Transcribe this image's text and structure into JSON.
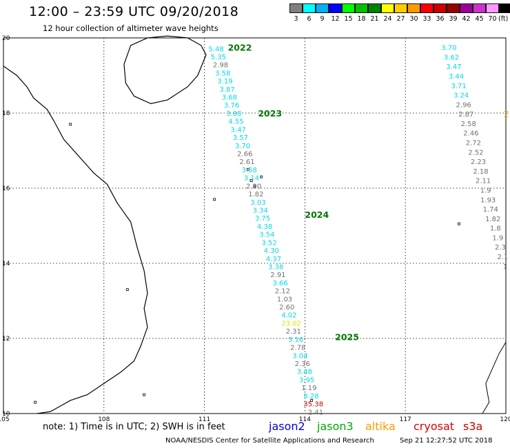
{
  "title": "12:00 – 23:59 UTC 09/20/2018",
  "subtitle": "12 hour collection of altimeter wave heights",
  "scale": {
    "unit": "(ft)",
    "bins": [
      {
        "label": "3",
        "color": "#808080"
      },
      {
        "label": "6",
        "color": "#00ffff"
      },
      {
        "label": "9",
        "color": "#00b0f0"
      },
      {
        "label": "12",
        "color": "#0000ff"
      },
      {
        "label": "15",
        "color": "#00ff00"
      },
      {
        "label": "18",
        "color": "#00c000"
      },
      {
        "label": "21",
        "color": "#008000"
      },
      {
        "label": "24",
        "color": "#ffff00"
      },
      {
        "label": "27",
        "color": "#ffcc00"
      },
      {
        "label": "30",
        "color": "#ff9900"
      },
      {
        "label": "33",
        "color": "#ff0000"
      },
      {
        "label": "36",
        "color": "#cc0000"
      },
      {
        "label": "39",
        "color": "#990000"
      },
      {
        "label": "42",
        "color": "#990099"
      },
      {
        "label": "45",
        "color": "#cc33cc"
      },
      {
        "label": "70",
        "color": "#ff99ff"
      },
      {
        "label": "",
        "color": "#000000"
      }
    ]
  },
  "map": {
    "lon_labels": [
      "105",
      "108",
      "111",
      "114",
      "117",
      "120"
    ],
    "lat_labels": [
      "10",
      "12",
      "14",
      "16",
      "18",
      "20"
    ],
    "lon_range": [
      105,
      120
    ],
    "lat_range": [
      10,
      20
    ]
  },
  "passes": [
    {
      "id": "2022",
      "color": "#007700",
      "lon": 111.7,
      "lat": 19.75
    },
    {
      "id": "2023",
      "color": "#007700",
      "lon": 112.6,
      "lat": 18.0
    },
    {
      "id": "2024",
      "color": "#007700",
      "lon": 114.0,
      "lat": 15.3
    },
    {
      "id": "2025",
      "color": "#007700",
      "lon": 114.9,
      "lat": 12.05
    }
  ],
  "observations": {
    "track_a": [
      {
        "v": "5.48",
        "c": "#00d8e8"
      },
      {
        "v": "5.35",
        "c": "#00d8e8"
      },
      {
        "v": "2.98",
        "c": "#707070"
      },
      {
        "v": "3.58",
        "c": "#00d8e8"
      },
      {
        "v": "3.19",
        "c": "#00d8e8"
      },
      {
        "v": "3.87",
        "c": "#00d8e8"
      },
      {
        "v": "3.68",
        "c": "#00d8e8"
      },
      {
        "v": "3.76",
        "c": "#00d8e8"
      },
      {
        "v": "3.88",
        "c": "#00d8e8"
      },
      {
        "v": "4.55",
        "c": "#00d8e8"
      },
      {
        "v": "3.47",
        "c": "#00d8e8"
      },
      {
        "v": "3.57",
        "c": "#00d8e8"
      },
      {
        "v": "3.70",
        "c": "#00d8e8"
      },
      {
        "v": "2.66",
        "c": "#707070"
      },
      {
        "v": "2.61",
        "c": "#707070"
      },
      {
        "v": "3.58",
        "c": "#00d8e8"
      },
      {
        "v": "3.14",
        "c": "#00d8e8"
      },
      {
        "v": "2.90",
        "c": "#707070"
      },
      {
        "v": "1.82",
        "c": "#707070"
      },
      {
        "v": "3.03",
        "c": "#00d8e8"
      },
      {
        "v": "3.34",
        "c": "#00d8e8"
      },
      {
        "v": "3.75",
        "c": "#00d8e8"
      },
      {
        "v": "4.38",
        "c": "#00d8e8"
      },
      {
        "v": "3.54",
        "c": "#00d8e8"
      },
      {
        "v": "3.52",
        "c": "#00d8e8"
      },
      {
        "v": "4.30",
        "c": "#00d8e8"
      },
      {
        "v": "4.37",
        "c": "#00d8e8"
      },
      {
        "v": "3.38",
        "c": "#00d8e8"
      },
      {
        "v": "2.91",
        "c": "#707070"
      },
      {
        "v": "3.66",
        "c": "#00d8e8"
      },
      {
        "v": "2.12",
        "c": "#707070"
      },
      {
        "v": "1.03",
        "c": "#707070"
      },
      {
        "v": "2.60",
        "c": "#707070"
      },
      {
        "v": "4.02",
        "c": "#00d8e8"
      },
      {
        "v": "23.02",
        "c": "#e8e000"
      },
      {
        "v": "2.31",
        "c": "#707070"
      },
      {
        "v": "3.16",
        "c": "#00d8e8"
      },
      {
        "v": "2.78",
        "c": "#707070"
      },
      {
        "v": "3.04",
        "c": "#00d8e8"
      },
      {
        "v": "2.36",
        "c": "#707070"
      },
      {
        "v": "3.48",
        "c": "#00d8e8"
      },
      {
        "v": "3.95",
        "c": "#00d8e8"
      },
      {
        "v": "1.19",
        "c": "#707070"
      },
      {
        "v": "8.28",
        "c": "#00d8e8"
      },
      {
        "v": "35.38",
        "c": "#cc0000"
      },
      {
        "v": "2.41",
        "c": "#707070"
      }
    ],
    "track_b": [
      {
        "v": "3.70",
        "c": "#00d8e8"
      },
      {
        "v": "3.62",
        "c": "#00d8e8"
      },
      {
        "v": "3.47",
        "c": "#00d8e8"
      },
      {
        "v": "3.44",
        "c": "#00d8e8"
      },
      {
        "v": "3.71",
        "c": "#00d8e8"
      },
      {
        "v": "3.24",
        "c": "#00d8e8"
      },
      {
        "v": "2.96",
        "c": "#707070"
      },
      {
        "v": "2.87",
        "c": "#707070"
      },
      {
        "v": "2.58",
        "c": "#707070"
      },
      {
        "v": "2.46",
        "c": "#707070"
      },
      {
        "v": "2.72",
        "c": "#707070"
      },
      {
        "v": "2.52",
        "c": "#707070"
      },
      {
        "v": "2.23",
        "c": "#707070"
      },
      {
        "v": "2.18",
        "c": "#707070"
      },
      {
        "v": "2.11",
        "c": "#707070"
      },
      {
        "v": "1.9",
        "c": "#707070"
      },
      {
        "v": "1.93",
        "c": "#707070"
      },
      {
        "v": "1.74",
        "c": "#707070"
      },
      {
        "v": "1.82",
        "c": "#707070"
      },
      {
        "v": "1.8",
        "c": "#707070"
      },
      {
        "v": "1.9",
        "c": "#707070"
      },
      {
        "v": "2.3",
        "c": "#707070"
      },
      {
        "v": "2.1",
        "c": "#707070"
      },
      {
        "v": "1",
        "c": "#707070"
      }
    ],
    "edge_marker": {
      "v": "2",
      "c": "#f0a000"
    }
  },
  "note": "note:  1) Time is in UTC;  2) SWH is in feet",
  "missions": [
    {
      "name": "jason2",
      "color": "#0000ee"
    },
    {
      "name": "jason3",
      "color": "#00aa00"
    },
    {
      "name": "altika",
      "color": "#ff9900"
    },
    {
      "name": "cryosat",
      "color": "#dd0000"
    },
    {
      "name": "s3a",
      "color": "#cc0000"
    }
  ],
  "footer": "NOAA/NESDIS Center for Satellite Applications and Research",
  "footer_date": "Sep 21 12:27:52 UTC 2018"
}
